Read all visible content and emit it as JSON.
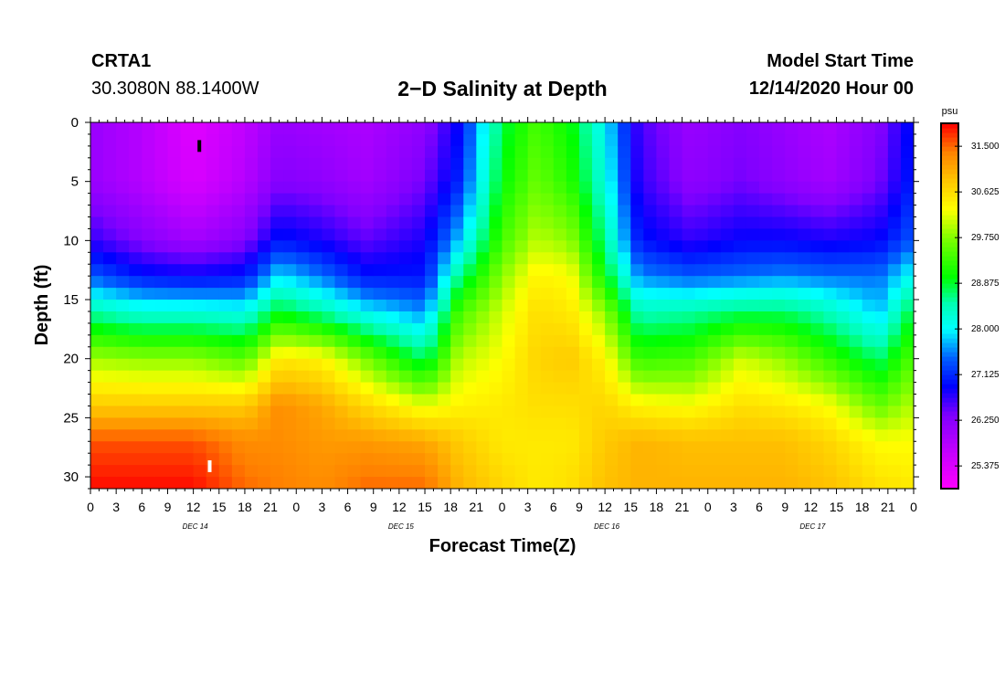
{
  "header": {
    "station_id": "CRTA1",
    "station_coords": "30.3080N 88.1400W",
    "title": "2−D Salinity at Depth",
    "model_start_label": "Model Start Time",
    "model_start_value": "12/14/2020 Hour 00"
  },
  "chart_data": {
    "type": "heatmap",
    "title": "2−D Salinity at Depth",
    "xlabel": "Forecast Time(Z)",
    "ylabel": "Depth (ft)",
    "x_range_hours": [
      0,
      96
    ],
    "y_range_ft": [
      0,
      31
    ],
    "y_reversed": true,
    "x_ticks": [
      {
        "h": 0,
        "label": "0"
      },
      {
        "h": 3,
        "label": "3"
      },
      {
        "h": 6,
        "label": "6"
      },
      {
        "h": 9,
        "label": "9"
      },
      {
        "h": 12,
        "label": "12"
      },
      {
        "h": 15,
        "label": "15"
      },
      {
        "h": 18,
        "label": "18"
      },
      {
        "h": 21,
        "label": "21"
      },
      {
        "h": 24,
        "label": "0"
      },
      {
        "h": 27,
        "label": "3"
      },
      {
        "h": 30,
        "label": "6"
      },
      {
        "h": 33,
        "label": "9"
      },
      {
        "h": 36,
        "label": "12"
      },
      {
        "h": 39,
        "label": "15"
      },
      {
        "h": 42,
        "label": "18"
      },
      {
        "h": 45,
        "label": "21"
      },
      {
        "h": 48,
        "label": "0"
      },
      {
        "h": 51,
        "label": "3"
      },
      {
        "h": 54,
        "label": "6"
      },
      {
        "h": 57,
        "label": "9"
      },
      {
        "h": 60,
        "label": "12"
      },
      {
        "h": 63,
        "label": "15"
      },
      {
        "h": 66,
        "label": "18"
      },
      {
        "h": 69,
        "label": "21"
      },
      {
        "h": 72,
        "label": "0"
      },
      {
        "h": 75,
        "label": "3"
      },
      {
        "h": 78,
        "label": "6"
      },
      {
        "h": 81,
        "label": "9"
      },
      {
        "h": 84,
        "label": "12"
      },
      {
        "h": 87,
        "label": "15"
      },
      {
        "h": 90,
        "label": "18"
      },
      {
        "h": 93,
        "label": "21"
      },
      {
        "h": 96,
        "label": "0"
      }
    ],
    "day_labels": [
      {
        "h": 12,
        "label": "DEC 14"
      },
      {
        "h": 36,
        "label": "DEC 15"
      },
      {
        "h": 60,
        "label": "DEC 16"
      },
      {
        "h": 84,
        "label": "DEC 17"
      }
    ],
    "y_ticks": [
      0,
      5,
      10,
      15,
      20,
      25,
      30
    ],
    "colorbar": {
      "unit": "psu",
      "min": 24.94,
      "max": 31.94,
      "tick_values": [
        25.375,
        26.25,
        27.125,
        28.0,
        28.875,
        29.75,
        30.625,
        31.5
      ],
      "tick_labels": [
        "25.375",
        "26.250",
        "27.125",
        "28.000",
        "28.875",
        "29.750",
        "30.625",
        "31.500"
      ],
      "color_stops": [
        {
          "v": 24.94,
          "c": "#ff00ff"
        },
        {
          "v": 25.7,
          "c": "#c000ff"
        },
        {
          "v": 26.35,
          "c": "#8000ff"
        },
        {
          "v": 26.9,
          "c": "#0000ff"
        },
        {
          "v": 27.45,
          "c": "#0060ff"
        },
        {
          "v": 28.0,
          "c": "#00ffff"
        },
        {
          "v": 28.5,
          "c": "#00ffb0"
        },
        {
          "v": 29.0,
          "c": "#00ff00"
        },
        {
          "v": 29.75,
          "c": "#80ff00"
        },
        {
          "v": 30.3,
          "c": "#ffff00"
        },
        {
          "v": 30.9,
          "c": "#ffc000"
        },
        {
          "v": 31.4,
          "c": "#ff8000"
        },
        {
          "v": 31.94,
          "c": "#ff0000"
        }
      ]
    },
    "depth_levels_ft": [
      0,
      5,
      10,
      13,
      16,
      20,
      24,
      27,
      31
    ],
    "time_hours": [
      0,
      6,
      12,
      18,
      22,
      27,
      32,
      39,
      43,
      48,
      52,
      56,
      60,
      64,
      70,
      76,
      81,
      86,
      92,
      96
    ],
    "salinity_profiles": [
      [
        26.1,
        26.1,
        26.7,
        27.4,
        28.5,
        29.9,
        30.8,
        31.6,
        31.9
      ],
      [
        25.8,
        25.8,
        26.3,
        27.0,
        28.2,
        29.8,
        30.8,
        31.6,
        31.9
      ],
      [
        25.3,
        25.4,
        26.0,
        26.9,
        28.2,
        29.8,
        30.8,
        31.6,
        31.9
      ],
      [
        25.7,
        25.8,
        26.3,
        27.0,
        28.1,
        29.5,
        30.8,
        31.3,
        31.5
      ],
      [
        26.1,
        26.3,
        27.0,
        27.9,
        28.9,
        30.5,
        31.3,
        31.3,
        31.4
      ],
      [
        26.0,
        26.2,
        26.8,
        27.5,
        28.5,
        30.4,
        31.1,
        31.2,
        31.3
      ],
      [
        25.9,
        26.0,
        26.5,
        27.0,
        28.0,
        29.7,
        30.7,
        31.2,
        31.5
      ],
      [
        26.2,
        26.4,
        26.8,
        27.0,
        27.6,
        28.7,
        30.2,
        31.1,
        31.5
      ],
      [
        26.9,
        27.1,
        27.8,
        28.6,
        29.4,
        30.0,
        30.4,
        30.8,
        31.0
      ],
      [
        28.8,
        29.0,
        29.4,
        29.8,
        30.1,
        30.3,
        30.5,
        30.5,
        30.7
      ],
      [
        29.4,
        29.6,
        30.0,
        30.4,
        30.6,
        30.7,
        30.6,
        30.5,
        30.5
      ],
      [
        29.0,
        29.2,
        29.8,
        30.3,
        30.5,
        30.8,
        30.6,
        30.5,
        30.6
      ],
      [
        28.0,
        28.2,
        28.6,
        29.0,
        29.8,
        30.4,
        30.7,
        30.8,
        30.9
      ],
      [
        26.6,
        26.7,
        27.0,
        27.6,
        28.4,
        29.3,
        30.4,
        31.0,
        31.0
      ],
      [
        26.1,
        26.2,
        26.7,
        27.4,
        28.5,
        29.4,
        30.3,
        30.9,
        31.0
      ],
      [
        26.3,
        26.4,
        26.9,
        27.5,
        28.7,
        30.1,
        30.6,
        30.9,
        31.0
      ],
      [
        26.1,
        26.2,
        26.9,
        27.6,
        28.7,
        29.8,
        30.5,
        30.9,
        31.0
      ],
      [
        25.9,
        26.0,
        26.8,
        27.5,
        28.4,
        29.3,
        30.3,
        30.7,
        30.9
      ],
      [
        26.3,
        26.4,
        26.9,
        27.5,
        27.8,
        28.7,
        29.6,
        30.3,
        30.6
      ],
      [
        27.0,
        27.1,
        27.4,
        28.1,
        28.9,
        29.5,
        30.0,
        30.3,
        30.5
      ]
    ],
    "markers": [
      {
        "name": "surface-sensor-marker",
        "h": 12.7,
        "depth_from": 1.5,
        "depth_to": 2.5,
        "color": "#000000"
      },
      {
        "name": "bottom-sensor-marker",
        "h": 13.9,
        "depth_from": 28.6,
        "depth_to": 29.6,
        "color": "#ffffff"
      }
    ]
  }
}
